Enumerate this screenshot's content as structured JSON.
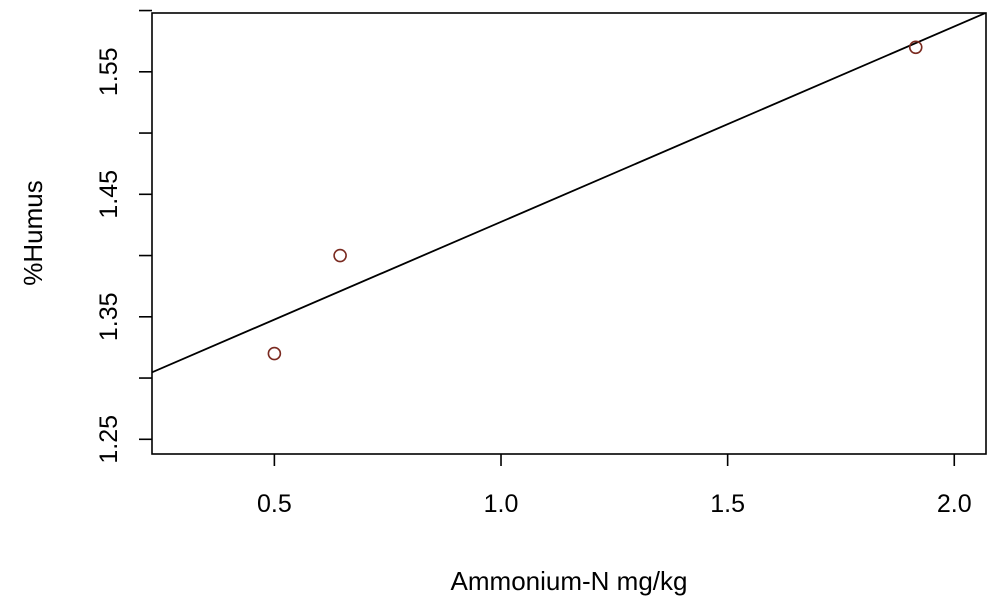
{
  "chart_data": {
    "type": "scatter",
    "title": "",
    "xlabel": "Ammonium-N mg/kg",
    "ylabel": "%Humus",
    "xlim": [
      0.23,
      2.07
    ],
    "ylim": [
      1.238,
      1.598
    ],
    "x_ticks": [
      0.5,
      1.0,
      1.5,
      2.0
    ],
    "x_tick_labels": [
      "0.5",
      "1.0",
      "1.5",
      "2.0"
    ],
    "y_ticks": [
      1.25,
      1.3,
      1.35,
      1.4,
      1.45,
      1.5,
      1.55,
      1.6
    ],
    "y_tick_labels": [
      "1.25",
      "",
      "1.35",
      "",
      "1.45",
      "",
      "1.55",
      ""
    ],
    "grid": false,
    "series": [
      {
        "x": [
          0.5,
          0.645,
          1.915
        ],
        "y": [
          1.32,
          1.4,
          1.57
        ]
      }
    ],
    "regression_line": {
      "slope": 0.1595,
      "intercept": 1.268
    },
    "colors": {
      "points": "#7a2a20",
      "line": "#000000",
      "axes": "#000000"
    }
  }
}
